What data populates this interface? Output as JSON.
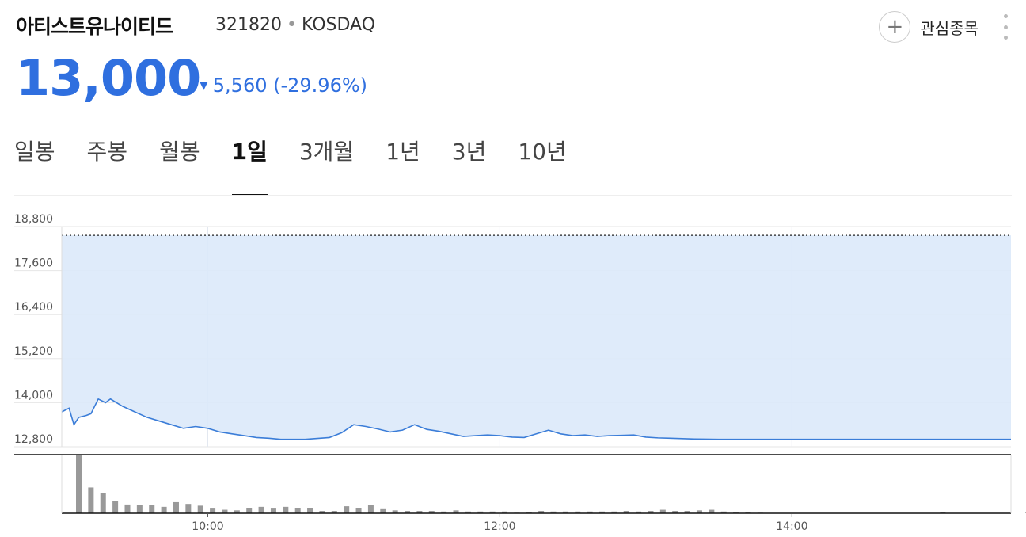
{
  "header": {
    "name": "아티스트유나이티드",
    "code": "321820",
    "separator": "•",
    "market": "KOSDAQ",
    "watch_icon": "plus-icon",
    "watch_label": "관심종목",
    "more_icon": "kebab-menu-icon"
  },
  "quote": {
    "price": "13,000",
    "arrow_icon": "down-arrow-icon",
    "arrow": "▼",
    "change": "5,560 (-29.96%)"
  },
  "colors": {
    "price": "#2f6fdf",
    "line": "#3b7dd8",
    "area": "#dce9f9",
    "volume": "#999999"
  },
  "tabs": [
    {
      "label": "일봉",
      "active": false
    },
    {
      "label": "주봉",
      "active": false
    },
    {
      "label": "월봉",
      "active": false
    },
    {
      "label": "1일",
      "active": true
    },
    {
      "label": "3개월",
      "active": false
    },
    {
      "label": "1년",
      "active": false
    },
    {
      "label": "3년",
      "active": false
    },
    {
      "label": "10년",
      "active": false
    }
  ],
  "chart_data": {
    "type": "line",
    "subtype": "intraday-price-with-volume",
    "xlim": [
      "09:00",
      "15:30"
    ],
    "x_ticks": [
      "10:00",
      "12:00",
      "14:00"
    ],
    "ylim": [
      12800,
      18800
    ],
    "y_ticks": [
      12800,
      14000,
      15200,
      16400,
      17600,
      18800
    ],
    "y_tick_labels": [
      "12,800",
      "14,000",
      "15,200",
      "16,400",
      "17,600",
      "18,800"
    ],
    "reference_line": {
      "value": 18560,
      "style": "dotted"
    },
    "grid": true,
    "price_series": {
      "x": [
        "09:00",
        "09:03",
        "09:05",
        "09:07",
        "09:10",
        "09:12",
        "09:15",
        "09:18",
        "09:20",
        "09:25",
        "09:30",
        "09:35",
        "09:40",
        "09:45",
        "09:50",
        "09:55",
        "10:00",
        "10:05",
        "10:10",
        "10:15",
        "10:20",
        "10:25",
        "10:30",
        "10:40",
        "10:50",
        "10:55",
        "11:00",
        "11:05",
        "11:10",
        "11:15",
        "11:20",
        "11:25",
        "11:30",
        "11:35",
        "11:40",
        "11:45",
        "11:50",
        "11:55",
        "12:00",
        "12:05",
        "12:10",
        "12:15",
        "12:20",
        "12:25",
        "12:30",
        "12:35",
        "12:40",
        "12:45",
        "12:50",
        "12:55",
        "13:00",
        "13:05",
        "13:10",
        "13:15",
        "13:20",
        "13:30",
        "14:00",
        "14:30",
        "15:00",
        "15:30"
      ],
      "y": [
        13750,
        13850,
        13400,
        13600,
        13650,
        13700,
        14100,
        14000,
        14100,
        13900,
        13750,
        13600,
        13500,
        13400,
        13300,
        13350,
        13300,
        13200,
        13150,
        13100,
        13050,
        13030,
        13000,
        13000,
        13050,
        13180,
        13400,
        13350,
        13280,
        13200,
        13250,
        13400,
        13270,
        13220,
        13150,
        13080,
        13100,
        13120,
        13100,
        13060,
        13050,
        13150,
        13250,
        13150,
        13100,
        13120,
        13080,
        13100,
        13110,
        13120,
        13060,
        13040,
        13030,
        13020,
        13010,
        13000,
        13000,
        13000,
        13000,
        13000
      ]
    },
    "volume_series": {
      "x": [
        "09:00",
        "09:05",
        "09:10",
        "09:15",
        "09:20",
        "09:25",
        "09:30",
        "09:35",
        "09:40",
        "09:45",
        "09:50",
        "09:55",
        "10:00",
        "10:05",
        "10:10",
        "10:15",
        "10:20",
        "10:25",
        "10:30",
        "10:35",
        "10:40",
        "10:45",
        "10:50",
        "10:55",
        "11:00",
        "11:05",
        "11:10",
        "11:15",
        "11:20",
        "11:25",
        "11:30",
        "11:35",
        "11:40",
        "11:45",
        "11:50",
        "11:55",
        "12:00",
        "12:05",
        "12:10",
        "12:15",
        "12:20",
        "12:25",
        "12:30",
        "12:35",
        "12:40",
        "12:45",
        "12:50",
        "12:55",
        "13:00",
        "13:05",
        "13:10",
        "13:15",
        "13:20",
        "13:25",
        "13:30",
        "13:35",
        "13:40",
        "14:55",
        "15:30"
      ],
      "values": [
        100,
        44,
        34,
        21,
        15,
        14,
        14,
        11,
        19,
        16,
        13,
        8,
        6,
        5,
        9,
        11,
        8,
        11,
        9,
        9,
        4,
        4,
        12,
        9,
        14,
        7,
        5,
        4,
        4,
        4,
        3,
        5,
        3,
        3,
        3,
        3,
        1,
        2,
        4,
        3,
        3,
        3,
        3,
        3,
        3,
        4,
        3,
        4,
        6,
        4,
        4,
        5,
        6,
        3,
        2,
        2,
        1,
        2,
        1
      ]
    }
  }
}
